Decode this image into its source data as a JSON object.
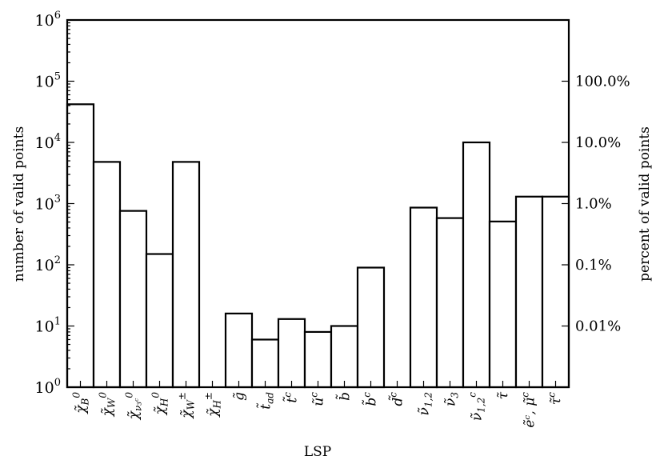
{
  "chart_data": {
    "type": "bar",
    "xlabel": "LSP",
    "ylabel": "number of valid points",
    "y2label": "percent of valid points",
    "yscale": "log",
    "ylim": [
      1,
      1000000
    ],
    "yticks": [
      {
        "base": "10",
        "exp": "0"
      },
      {
        "base": "10",
        "exp": "1"
      },
      {
        "base": "10",
        "exp": "2"
      },
      {
        "base": "10",
        "exp": "3"
      },
      {
        "base": "10",
        "exp": "4"
      },
      {
        "base": "10",
        "exp": "5"
      },
      {
        "base": "10",
        "exp": "6"
      }
    ],
    "y2ticks": [
      {
        "label": "0.01%",
        "value": 10
      },
      {
        "label": "0.1%",
        "value": 100
      },
      {
        "label": "1.0%",
        "value": 1000
      },
      {
        "label": "10.0%",
        "value": 10000
      },
      {
        "label": "100.0%",
        "value": 100000
      }
    ],
    "categories": [
      {
        "base": "χ̃",
        "sub": "B",
        "sup": "0"
      },
      {
        "base": "χ̃",
        "sub": "W",
        "sup": "0"
      },
      {
        "base": "χ̃",
        "sub": "ν₃ᶜ",
        "sup": "0"
      },
      {
        "base": "χ̃",
        "sub": "H",
        "sup": "0"
      },
      {
        "base": "χ̃",
        "sub": "W",
        "sup": "±"
      },
      {
        "base": "χ̃",
        "sub": "H",
        "sup": "±"
      },
      {
        "base": "g̃",
        "sub": "",
        "sup": ""
      },
      {
        "base": "t̃",
        "sub": "ad",
        "sup": ""
      },
      {
        "base": "t̃",
        "sub": "",
        "sup": "c"
      },
      {
        "base": "ũ",
        "sub": "",
        "sup": "c"
      },
      {
        "base": "b̃",
        "sub": "",
        "sup": ""
      },
      {
        "base": "b̃",
        "sub": "",
        "sup": "c"
      },
      {
        "base": "d̃",
        "sub": "",
        "sup": "c"
      },
      {
        "base": "ν̃",
        "sub": "1,2",
        "sup": ""
      },
      {
        "base": "ν̃",
        "sub": "3",
        "sup": ""
      },
      {
        "base": "ν̃",
        "sub": "1,2",
        "sup": "c"
      },
      {
        "base": "τ̃",
        "sub": "",
        "sup": ""
      },
      {
        "base": "ẽᶜ, μ̃",
        "sub": "",
        "sup": "c"
      },
      {
        "base": "τ̃",
        "sub": "",
        "sup": "c"
      }
    ],
    "values": [
      42000,
      4800,
      760,
      150,
      4800,
      0,
      16,
      6,
      13,
      8,
      10,
      90,
      0,
      860,
      580,
      10000,
      510,
      1300,
      1300
    ]
  }
}
